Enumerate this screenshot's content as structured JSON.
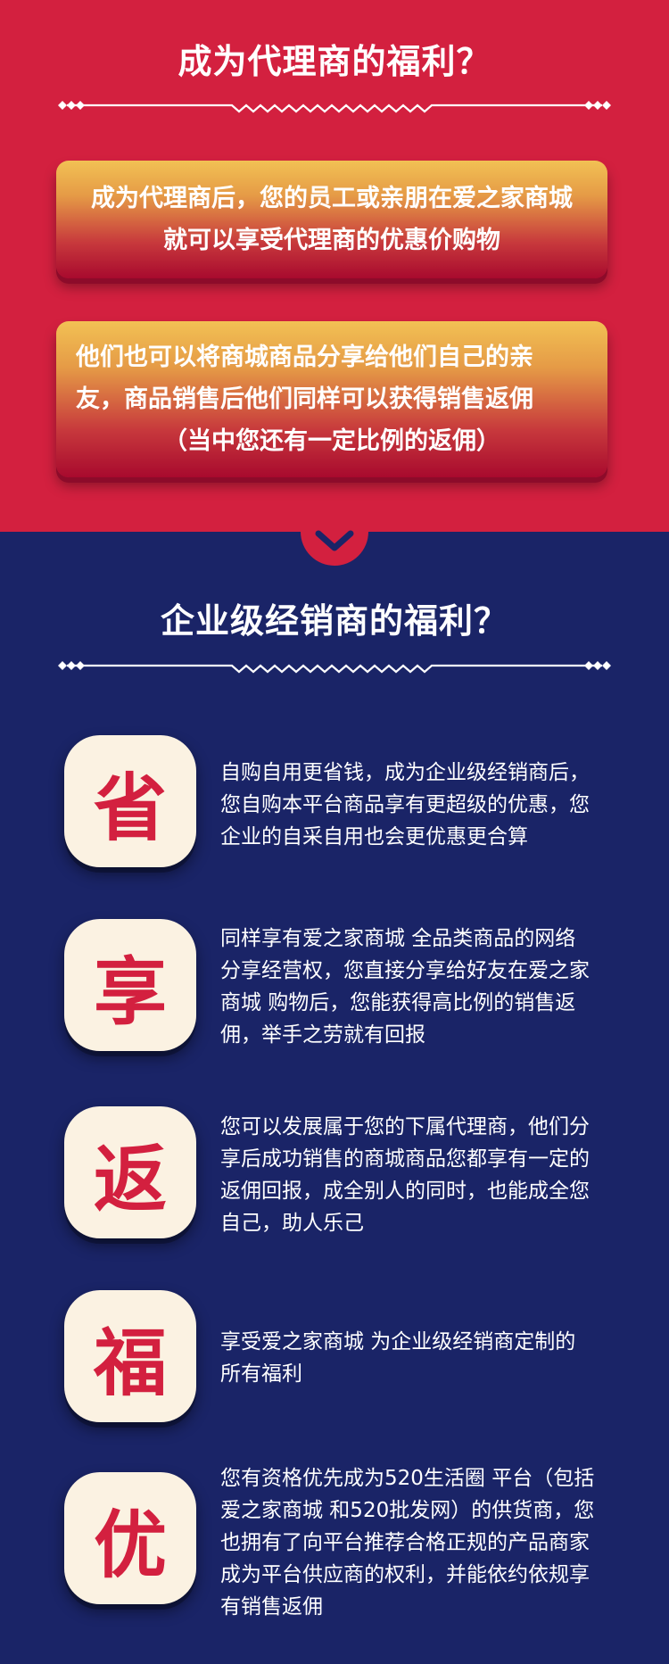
{
  "colors": {
    "red_bg": "#d3203f",
    "navy_bg": "#1a2467",
    "badge_bg": "#fbf2e2",
    "badge_text": "#d3203f"
  },
  "section1": {
    "title": "成为代理商的福利？",
    "banner1": [
      "成为代理商后，您的员工或亲朋在爱之家商城",
      "就可以享受代理商的优惠价购物"
    ],
    "banner2": [
      "他们也可以将商城商品分享给他们自己的亲",
      "友，商品销售后他们同样可以获得销售返佣",
      "（当中您还有一定比例的返佣）"
    ]
  },
  "connector_icon": "chevron-down-icon",
  "section2": {
    "title": "企业级经销商的福利？",
    "items": [
      {
        "char": "省",
        "lines": [
          "自购自用更省钱，成为企业级经销商后，",
          "您自购本平台商品享有更超级的优惠，您",
          "企业的自采自用也会更优惠更合算"
        ]
      },
      {
        "char": "享",
        "lines": [
          "同样享有爱之家商城    全品类商品的网络",
          "分享经营权，您直接分享给好友在爱之家",
          "商城    购物后，您能获得高比例的销售返",
          "佣，举手之劳就有回报"
        ]
      },
      {
        "char": "返",
        "lines": [
          "您可以发展属于您的下属代理商，他们分",
          "享后成功销售的商城商品您都享有一定的",
          "返佣回报，成全别人的同时，也能成全您",
          "自己，助人乐己"
        ]
      },
      {
        "char": "福",
        "lines": [
          "享受爱之家商城    为企业级经销商定制的",
          "所有福利"
        ]
      },
      {
        "char": "优",
        "lines": [
          "您有资格优先成为520生活圈  平台（包括",
          "爱之家商城  和520批发网）的供货商，您",
          "也拥有了向平台推荐合格正规的产品商家",
          "成为平台供应商的权利，并能依约依规享",
          "有销售返佣"
        ]
      }
    ]
  }
}
